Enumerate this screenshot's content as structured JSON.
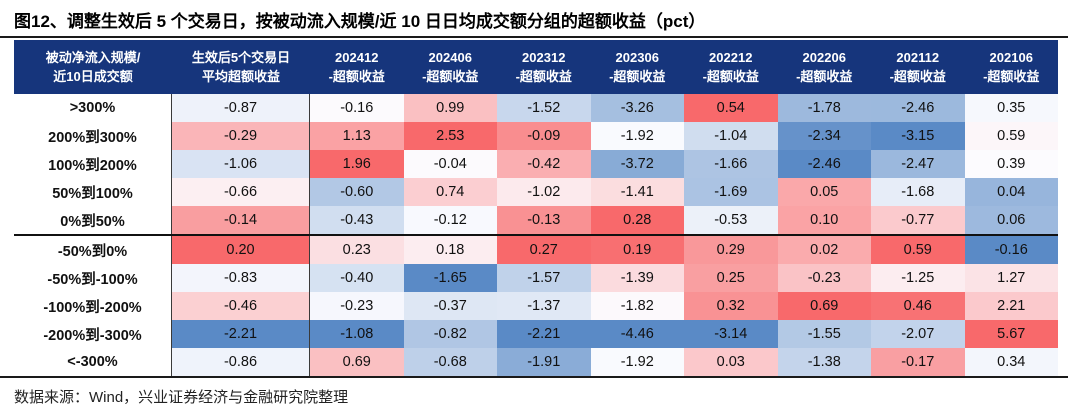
{
  "title": "图12、调整生效后 5 个交易日，按被动流入规模/近 10 日日均成交额分组的超额收益（pct）",
  "source_note": "数据来源：Wind，兴业证券经济与金融研究院整理",
  "chart_data": {
    "type": "heatmap",
    "title": "调整生效后5个交易日，按被动流入规模/近10日日均成交额分组的超额收益",
    "unit": "pct",
    "corner_header": "被动净流入规模/\n近10日成交额",
    "column_headers": [
      "生效后5个交易日\n平均超额收益",
      "202412\n-超额收益",
      "202406\n-超额收益",
      "202312\n-超额收益",
      "202306\n-超额收益",
      "202212\n-超额收益",
      "202206\n-超额收益",
      "202112\n-超额收益",
      "202106\n-超额收益"
    ],
    "row_labels": [
      ">300%",
      "200%到300%",
      "100%到200%",
      "50%到100%",
      "0%到50%",
      "-50%到0%",
      "-50%到-100%",
      "-100%到-200%",
      "-200%到-300%",
      "<-300%"
    ],
    "values": [
      [
        -0.87,
        -0.16,
        0.99,
        -1.52,
        -3.26,
        0.54,
        -1.78,
        -2.46,
        0.35
      ],
      [
        -0.29,
        1.13,
        2.53,
        -0.09,
        -1.92,
        -1.04,
        -2.34,
        -3.15,
        0.59
      ],
      [
        -1.06,
        1.96,
        -0.04,
        -0.42,
        -3.72,
        -1.66,
        -2.46,
        -2.47,
        0.39
      ],
      [
        -0.66,
        -0.6,
        0.74,
        -1.02,
        -1.41,
        -1.69,
        0.05,
        -1.68,
        0.04
      ],
      [
        -0.14,
        -0.43,
        -0.12,
        -0.13,
        0.28,
        -0.53,
        0.1,
        -0.77,
        0.06
      ],
      [
        0.2,
        0.23,
        0.18,
        0.27,
        0.19,
        0.29,
        0.02,
        0.59,
        -0.16
      ],
      [
        -0.83,
        -0.4,
        -1.65,
        -1.57,
        -1.39,
        0.25,
        -0.23,
        -1.25,
        1.27
      ],
      [
        -0.46,
        -0.23,
        -0.37,
        -1.37,
        -1.82,
        0.32,
        0.69,
        0.46,
        2.21
      ],
      [
        -2.21,
        -1.08,
        -0.82,
        -2.21,
        -4.46,
        -3.14,
        -1.55,
        -2.07,
        5.67
      ],
      [
        -0.86,
        0.69,
        -0.68,
        -1.91,
        -1.92,
        0.03,
        -1.38,
        -0.17,
        0.34
      ]
    ],
    "group_separator_after_row": 4,
    "value_decimals": 2,
    "colors": {
      "header_bg": "#16357C",
      "header_text": "#FFFFFF",
      "scale_low": "#5A8AC6",
      "scale_mid": "#FCFCFF",
      "scale_high": "#F8696B",
      "scale_midpoint": "per-column median"
    }
  }
}
